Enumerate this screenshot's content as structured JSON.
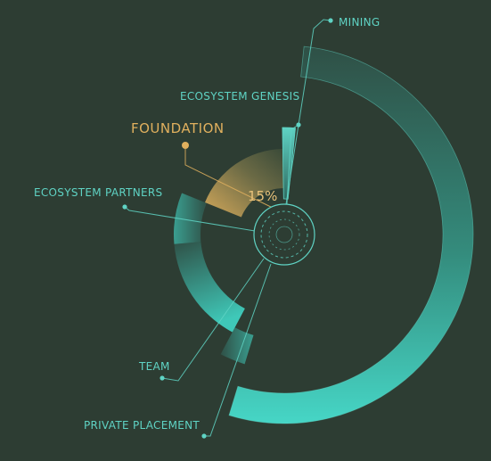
{
  "chart_data": {
    "type": "pie",
    "title": "",
    "variant": "radial-rose",
    "highlighted": "FOUNDATION",
    "highlight_label": "15%",
    "slices": [
      {
        "name": "MINING",
        "value": 50
      },
      {
        "name": "PRIVATE PLACEMENT",
        "value": 5
      },
      {
        "name": "TEAM",
        "value": 10
      },
      {
        "name": "ECOSYSTEM PARTNERS",
        "value": 5
      },
      {
        "name": "FOUNDATION",
        "value": 15
      },
      {
        "name": "ECOSYSTEM GENESIS",
        "value": 1
      }
    ]
  },
  "colors": {
    "background": "#2d3d33",
    "accent": "#46d6c6",
    "highlight": "#e0b05e"
  }
}
